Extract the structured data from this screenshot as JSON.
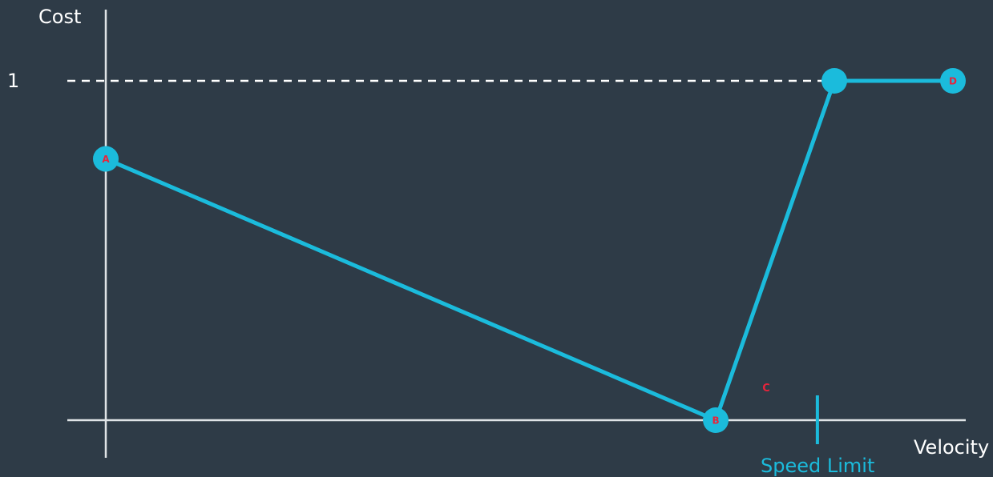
{
  "colors": {
    "background": "#2e3b47",
    "axis": "#dfe3e6",
    "series": "#1bbbdc",
    "point_label": "#e8243b",
    "text": "#ffffff",
    "speed_limit": "#1bbbdc"
  },
  "chart_data": {
    "type": "line",
    "title": "",
    "xlabel": "Velocity",
    "ylabel": "Cost",
    "ylim": [
      0,
      1
    ],
    "y_ticks": [
      "1"
    ],
    "reference_line": {
      "y": 1,
      "style": "dashed"
    },
    "marker": {
      "label": "C",
      "caption": "Speed Limit",
      "x": 0.84
    },
    "series": [
      {
        "points": [
          {
            "label": "A",
            "x": 0.0,
            "y": 0.77
          },
          {
            "label": "B",
            "x": 0.72,
            "y": 0.0
          },
          {
            "label": "",
            "x": 0.86,
            "y": 1.0
          },
          {
            "label": "D",
            "x": 1.0,
            "y": 1.0
          }
        ]
      }
    ]
  }
}
